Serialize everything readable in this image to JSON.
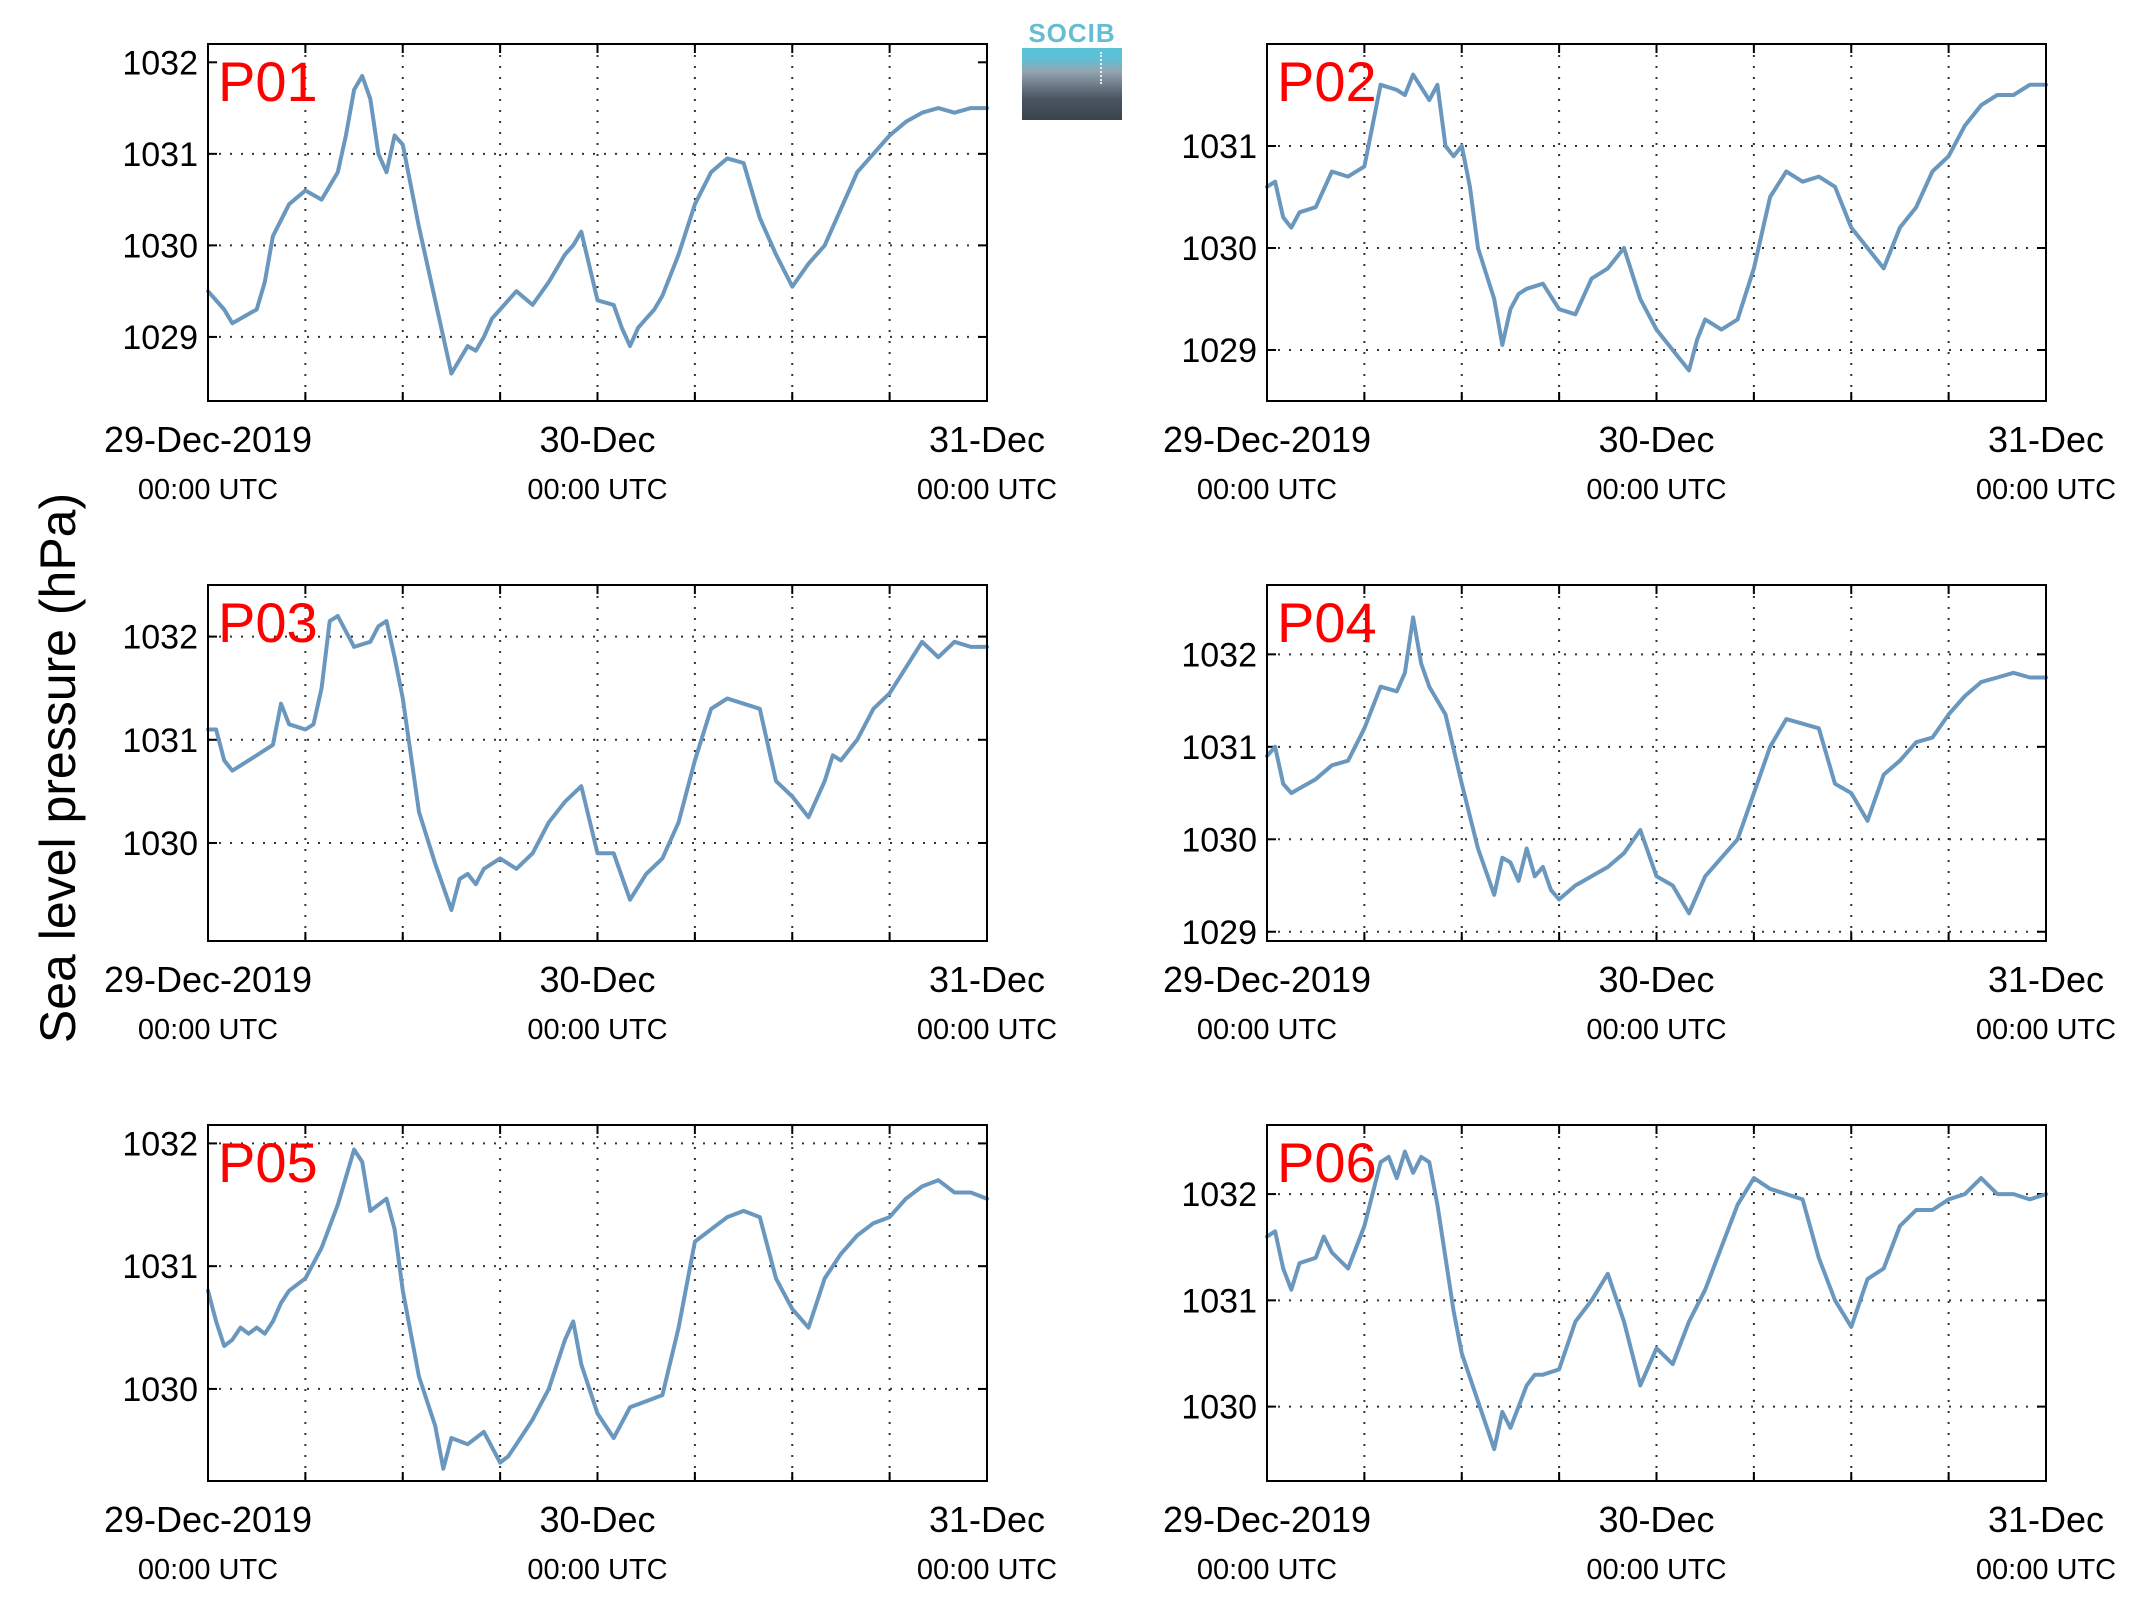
{
  "ylabel": "Sea level pressure (hPa)",
  "logo": {
    "text": "SOCIB"
  },
  "colors": {
    "line": "#6a97bd",
    "panel_label": "#ff0000",
    "grid": "#333333",
    "axis": "#000000"
  },
  "chart_data": [
    {
      "type": "line",
      "title": "P01",
      "xlabel": "",
      "ylabel": "Sea level pressure (hPa)",
      "xlim": [
        0,
        48
      ],
      "ylim": [
        1028.3,
        1032.2
      ],
      "x_gridlines": [
        0,
        6,
        12,
        18,
        24,
        30,
        36,
        42,
        48
      ],
      "y_ticks": [
        1029,
        1030,
        1031,
        1032
      ],
      "y_grid": [
        1029,
        1030,
        1031
      ],
      "x_tick_labels": [
        {
          "x": 0,
          "main": "29-Dec-2019",
          "sub": "00:00 UTC"
        },
        {
          "x": 24,
          "main": "30-Dec",
          "sub": "00:00 UTC"
        },
        {
          "x": 48,
          "main": "31-Dec",
          "sub": "00:00 UTC"
        }
      ],
      "grid": true,
      "x": [
        0,
        1,
        1.5,
        2,
        2.5,
        3,
        3.5,
        4,
        5,
        6,
        7,
        8,
        8.5,
        9,
        9.5,
        10,
        10.5,
        11,
        11.5,
        12,
        13,
        14,
        15,
        16,
        16.5,
        17,
        17.5,
        18,
        19,
        20,
        21,
        22,
        22.5,
        23,
        24,
        25,
        25.5,
        26,
        26.5,
        27,
        27.5,
        28,
        29,
        30,
        31,
        32,
        33,
        34,
        35,
        36,
        37,
        38,
        39,
        39.5,
        40,
        41,
        42,
        43,
        44,
        45,
        46,
        47,
        48
      ],
      "values": [
        1029.5,
        1029.3,
        1029.15,
        1029.2,
        1029.25,
        1029.3,
        1029.6,
        1030.1,
        1030.45,
        1030.6,
        1030.5,
        1030.8,
        1031.2,
        1031.7,
        1031.85,
        1031.6,
        1031.0,
        1030.8,
        1031.2,
        1031.1,
        1030.2,
        1029.4,
        1028.6,
        1028.9,
        1028.85,
        1029.0,
        1029.2,
        1029.3,
        1029.5,
        1029.35,
        1029.6,
        1029.9,
        1030.0,
        1030.15,
        1029.4,
        1029.35,
        1029.1,
        1028.9,
        1029.1,
        1029.2,
        1029.3,
        1029.45,
        1029.9,
        1030.45,
        1030.8,
        1030.95,
        1030.9,
        1030.3,
        1029.9,
        1029.55,
        1029.8,
        1030.0,
        1030.4,
        1030.6,
        1030.8,
        1031.0,
        1031.2,
        1031.35,
        1031.45,
        1031.5,
        1031.45,
        1031.5,
        1031.5
      ]
    },
    {
      "type": "line",
      "title": "P02",
      "xlabel": "",
      "ylabel": "Sea level pressure (hPa)",
      "xlim": [
        0,
        48
      ],
      "ylim": [
        1028.5,
        1032.0
      ],
      "x_gridlines": [
        0,
        6,
        12,
        18,
        24,
        30,
        36,
        42,
        48
      ],
      "y_ticks": [
        1029,
        1030,
        1031
      ],
      "y_grid": [
        1029,
        1030,
        1031
      ],
      "x_tick_labels": [
        {
          "x": 0,
          "main": "29-Dec-2019",
          "sub": "00:00 UTC"
        },
        {
          "x": 24,
          "main": "30-Dec",
          "sub": "00:00 UTC"
        },
        {
          "x": 48,
          "main": "31-Dec",
          "sub": "00:00 UTC"
        }
      ],
      "grid": true,
      "x": [
        0,
        0.5,
        1,
        1.5,
        2,
        3,
        4,
        5,
        6,
        7,
        8,
        8.5,
        9,
        10,
        10.5,
        11,
        11.5,
        12,
        12.5,
        13,
        14,
        14.5,
        15,
        15.5,
        16,
        17,
        18,
        19,
        20,
        21,
        22,
        23,
        24,
        25,
        26,
        26.5,
        27,
        28,
        29,
        30,
        31,
        32,
        33,
        34,
        35,
        36,
        37,
        38,
        39,
        40,
        41,
        42,
        43,
        44,
        45,
        46,
        47,
        48
      ],
      "values": [
        1030.6,
        1030.65,
        1030.3,
        1030.2,
        1030.35,
        1030.4,
        1030.75,
        1030.7,
        1030.8,
        1031.6,
        1031.55,
        1031.5,
        1031.7,
        1031.45,
        1031.6,
        1031.0,
        1030.9,
        1031.0,
        1030.6,
        1030.0,
        1029.5,
        1029.05,
        1029.4,
        1029.55,
        1029.6,
        1029.65,
        1029.4,
        1029.35,
        1029.7,
        1029.8,
        1030.0,
        1029.5,
        1029.2,
        1029.0,
        1028.8,
        1029.1,
        1029.3,
        1029.2,
        1029.3,
        1029.8,
        1030.5,
        1030.75,
        1030.65,
        1030.7,
        1030.6,
        1030.2,
        1030.0,
        1029.8,
        1030.2,
        1030.4,
        1030.75,
        1030.9,
        1031.2,
        1031.4,
        1031.5,
        1031.5,
        1031.6,
        1031.6
      ]
    },
    {
      "type": "line",
      "title": "P03",
      "xlabel": "",
      "ylabel": "Sea level pressure (hPa)",
      "xlim": [
        0,
        48
      ],
      "ylim": [
        1029.05,
        1032.5
      ],
      "x_gridlines": [
        0,
        6,
        12,
        18,
        24,
        30,
        36,
        42,
        48
      ],
      "y_ticks": [
        1030,
        1031,
        1032
      ],
      "y_grid": [
        1030,
        1031,
        1032
      ],
      "x_tick_labels": [
        {
          "x": 0,
          "main": "29-Dec-2019",
          "sub": "00:00 UTC"
        },
        {
          "x": 24,
          "main": "30-Dec",
          "sub": "00:00 UTC"
        },
        {
          "x": 48,
          "main": "31-Dec",
          "sub": "00:00 UTC"
        }
      ],
      "grid": true,
      "x": [
        0,
        0.5,
        1,
        1.5,
        2,
        3,
        3.5,
        4,
        4.5,
        5,
        6,
        6.5,
        7,
        7.5,
        8,
        9,
        10,
        10.5,
        11,
        11.5,
        12,
        13,
        14,
        15,
        15.5,
        16,
        16.5,
        17,
        18,
        19,
        20,
        21,
        22,
        23,
        24,
        25,
        26,
        27,
        28,
        29,
        30,
        31,
        32,
        33,
        34,
        35,
        36,
        37,
        38,
        38.5,
        39,
        40,
        41,
        42,
        43,
        44,
        45,
        46,
        47,
        48
      ],
      "values": [
        1031.1,
        1031.1,
        1030.8,
        1030.7,
        1030.75,
        1030.85,
        1030.9,
        1030.95,
        1031.35,
        1031.15,
        1031.1,
        1031.15,
        1031.5,
        1032.15,
        1032.2,
        1031.9,
        1031.95,
        1032.1,
        1032.15,
        1031.8,
        1031.4,
        1030.3,
        1029.8,
        1029.35,
        1029.65,
        1029.7,
        1029.6,
        1029.75,
        1029.85,
        1029.75,
        1029.9,
        1030.2,
        1030.4,
        1030.55,
        1029.9,
        1029.9,
        1029.45,
        1029.7,
        1029.85,
        1030.2,
        1030.8,
        1031.3,
        1031.4,
        1031.35,
        1031.3,
        1030.6,
        1030.45,
        1030.25,
        1030.6,
        1030.85,
        1030.8,
        1031.0,
        1031.3,
        1031.45,
        1031.7,
        1031.95,
        1031.8,
        1031.95,
        1031.9,
        1031.9
      ]
    },
    {
      "type": "line",
      "title": "P04",
      "xlabel": "",
      "ylabel": "Sea level pressure (hPa)",
      "xlim": [
        0,
        48
      ],
      "ylim": [
        1028.9,
        1032.75
      ],
      "x_gridlines": [
        0,
        6,
        12,
        18,
        24,
        30,
        36,
        42,
        48
      ],
      "y_ticks": [
        1029,
        1030,
        1031,
        1032
      ],
      "y_grid": [
        1029,
        1030,
        1031,
        1032
      ],
      "x_tick_labels": [
        {
          "x": 0,
          "main": "29-Dec-2019",
          "sub": "00:00 UTC"
        },
        {
          "x": 24,
          "main": "30-Dec",
          "sub": "00:00 UTC"
        },
        {
          "x": 48,
          "main": "31-Dec",
          "sub": "00:00 UTC"
        }
      ],
      "grid": true,
      "x": [
        0,
        0.5,
        1,
        1.5,
        2,
        3,
        4,
        5,
        6,
        7,
        8,
        8.5,
        9,
        9.5,
        10,
        11,
        12,
        13,
        14,
        14.5,
        15,
        15.5,
        16,
        16.5,
        17,
        17.5,
        18,
        19,
        20,
        21,
        22,
        23,
        24,
        25,
        26,
        27,
        28,
        29,
        30,
        31,
        32,
        33,
        34,
        35,
        36,
        37,
        38,
        39,
        40,
        41,
        42,
        43,
        44,
        45,
        46,
        47,
        48
      ],
      "values": [
        1030.9,
        1031.0,
        1030.6,
        1030.5,
        1030.55,
        1030.65,
        1030.8,
        1030.85,
        1031.2,
        1031.65,
        1031.6,
        1031.8,
        1032.4,
        1031.9,
        1031.65,
        1031.35,
        1030.6,
        1029.9,
        1029.4,
        1029.8,
        1029.75,
        1029.55,
        1029.9,
        1029.6,
        1029.7,
        1029.45,
        1029.35,
        1029.5,
        1029.6,
        1029.7,
        1029.85,
        1030.1,
        1029.6,
        1029.5,
        1029.2,
        1029.6,
        1029.8,
        1030.0,
        1030.5,
        1031.0,
        1031.3,
        1031.25,
        1031.2,
        1030.6,
        1030.5,
        1030.2,
        1030.7,
        1030.85,
        1031.05,
        1031.1,
        1031.35,
        1031.55,
        1031.7,
        1031.75,
        1031.8,
        1031.75,
        1031.75
      ]
    },
    {
      "type": "line",
      "title": "P05",
      "xlabel": "",
      "ylabel": "Sea level pressure (hPa)",
      "xlim": [
        0,
        48
      ],
      "ylim": [
        1029.25,
        1032.15
      ],
      "x_gridlines": [
        0,
        6,
        12,
        18,
        24,
        30,
        36,
        42,
        48
      ],
      "y_ticks": [
        1030,
        1031,
        1032
      ],
      "y_grid": [
        1030,
        1031,
        1032
      ],
      "x_tick_labels": [
        {
          "x": 0,
          "main": "29-Dec-2019",
          "sub": "00:00 UTC"
        },
        {
          "x": 24,
          "main": "30-Dec",
          "sub": "00:00 UTC"
        },
        {
          "x": 48,
          "main": "31-Dec",
          "sub": "00:00 UTC"
        }
      ],
      "grid": true,
      "x": [
        0,
        0.5,
        1,
        1.5,
        2,
        2.5,
        3,
        3.5,
        4,
        4.5,
        5,
        6,
        7,
        8,
        9,
        9.5,
        10,
        11,
        11.5,
        12,
        13,
        14,
        14.5,
        15,
        16,
        17,
        18,
        18.5,
        19,
        20,
        21,
        22,
        22.5,
        23,
        24,
        25,
        26,
        27,
        28,
        29,
        30,
        31,
        32,
        33,
        34,
        35,
        36,
        37,
        38,
        38.5,
        39,
        40,
        41,
        42,
        43,
        44,
        45,
        46,
        47,
        48
      ],
      "values": [
        1030.8,
        1030.55,
        1030.35,
        1030.4,
        1030.5,
        1030.45,
        1030.5,
        1030.45,
        1030.55,
        1030.7,
        1030.8,
        1030.9,
        1031.15,
        1031.5,
        1031.95,
        1031.85,
        1031.45,
        1031.55,
        1031.3,
        1030.8,
        1030.1,
        1029.7,
        1029.35,
        1029.6,
        1029.55,
        1029.65,
        1029.4,
        1029.45,
        1029.55,
        1029.75,
        1030.0,
        1030.4,
        1030.55,
        1030.2,
        1029.8,
        1029.6,
        1029.85,
        1029.9,
        1029.95,
        1030.5,
        1031.2,
        1031.3,
        1031.4,
        1031.45,
        1031.4,
        1030.9,
        1030.65,
        1030.5,
        1030.9,
        1031.0,
        1031.1,
        1031.25,
        1031.35,
        1031.4,
        1031.55,
        1031.65,
        1031.7,
        1031.6,
        1031.6,
        1031.55
      ]
    },
    {
      "type": "line",
      "title": "P06",
      "xlabel": "",
      "ylabel": "Sea level pressure (hPa)",
      "xlim": [
        0,
        48
      ],
      "ylim": [
        1029.3,
        1032.65
      ],
      "x_gridlines": [
        0,
        6,
        12,
        18,
        24,
        30,
        36,
        42,
        48
      ],
      "y_ticks": [
        1030,
        1031,
        1032
      ],
      "y_grid": [
        1030,
        1031,
        1032
      ],
      "x_tick_labels": [
        {
          "x": 0,
          "main": "29-Dec-2019",
          "sub": "00:00 UTC"
        },
        {
          "x": 24,
          "main": "30-Dec",
          "sub": "00:00 UTC"
        },
        {
          "x": 48,
          "main": "31-Dec",
          "sub": "00:00 UTC"
        }
      ],
      "grid": true,
      "x": [
        0,
        0.5,
        1,
        1.5,
        2,
        3,
        3.5,
        4,
        5,
        6,
        7,
        7.5,
        8,
        8.5,
        9,
        9.5,
        10,
        10.5,
        11,
        11.5,
        12,
        13,
        14,
        14.5,
        15,
        15.5,
        16,
        16.5,
        17,
        18,
        19,
        20,
        21,
        22,
        23,
        24,
        25,
        26,
        27,
        28,
        29,
        30,
        31,
        32,
        33,
        34,
        35,
        36,
        37,
        38,
        39,
        40,
        41,
        42,
        43,
        44,
        45,
        46,
        47,
        48
      ],
      "values": [
        1031.6,
        1031.65,
        1031.3,
        1031.1,
        1031.35,
        1031.4,
        1031.6,
        1031.45,
        1031.3,
        1031.7,
        1032.3,
        1032.35,
        1032.15,
        1032.4,
        1032.2,
        1032.35,
        1032.3,
        1031.9,
        1031.4,
        1030.9,
        1030.5,
        1030.05,
        1029.6,
        1029.95,
        1029.8,
        1030.0,
        1030.2,
        1030.3,
        1030.3,
        1030.35,
        1030.8,
        1031.0,
        1031.25,
        1030.8,
        1030.2,
        1030.55,
        1030.4,
        1030.8,
        1031.1,
        1031.5,
        1031.9,
        1032.15,
        1032.05,
        1032.0,
        1031.95,
        1031.4,
        1031.0,
        1030.75,
        1031.2,
        1031.3,
        1031.7,
        1031.85,
        1031.85,
        1031.95,
        1032.0,
        1032.15,
        1032.0,
        1032.0,
        1031.95,
        1032.0
      ]
    }
  ]
}
